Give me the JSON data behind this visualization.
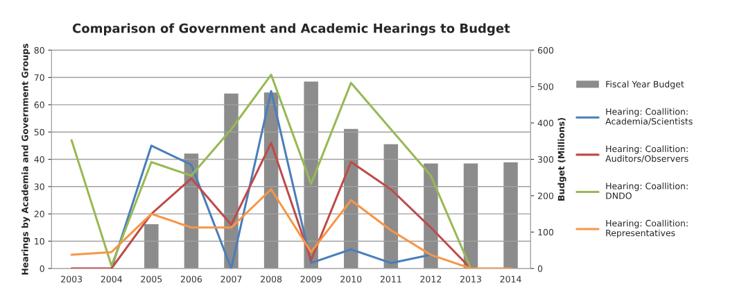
{
  "chart_data": {
    "type": "line",
    "title": "Comparison of Government and Academic Hearings to Budget",
    "ylabel": "Hearings by Academia and Government Groups",
    "y2label": "Budget (Millions)",
    "categories": [
      "2003",
      "2004",
      "2005",
      "2006",
      "2007",
      "2008",
      "2009",
      "2010",
      "2011",
      "2012",
      "2013",
      "2014"
    ],
    "series": [
      {
        "name": "Fiscal Year Budget",
        "type": "bar",
        "axis": "y2",
        "color": "#8c8c8c",
        "values": [
          null,
          null,
          123,
          317,
          482,
          485,
          515,
          385,
          343,
          290,
          290,
          293
        ]
      },
      {
        "name": "Hearing: Coallition: Academia/Scientists",
        "color": "#4a7ebb",
        "values": [
          null,
          0,
          45,
          38,
          0,
          65,
          2,
          7,
          2,
          5,
          null,
          null
        ]
      },
      {
        "name": "Hearing: Coallition: Auditors/Observers",
        "color": "#be4b48",
        "values": [
          0,
          0,
          20,
          33,
          16,
          46,
          3,
          39,
          29,
          15,
          0,
          null
        ]
      },
      {
        "name": "Hearing: Coallition: DNDO",
        "color": "#98b954",
        "values": [
          47,
          1,
          39,
          34,
          51,
          71,
          31,
          68,
          51,
          34,
          0,
          null
        ]
      },
      {
        "name": "Hearing: Coallition: Representatives",
        "color": "#f79646",
        "values": [
          5,
          6,
          20,
          15,
          15,
          29,
          6,
          25,
          14,
          5,
          0,
          0
        ]
      }
    ],
    "ylim": [
      0,
      80
    ],
    "yticks": [
      0,
      10,
      20,
      30,
      40,
      50,
      60,
      70,
      80
    ],
    "y2lim": [
      0,
      600
    ],
    "y2ticks": [
      0,
      100,
      200,
      300,
      400,
      500,
      600
    ],
    "grid": "y",
    "legend": "right",
    "marker": "none",
    "line_style": "solid"
  }
}
